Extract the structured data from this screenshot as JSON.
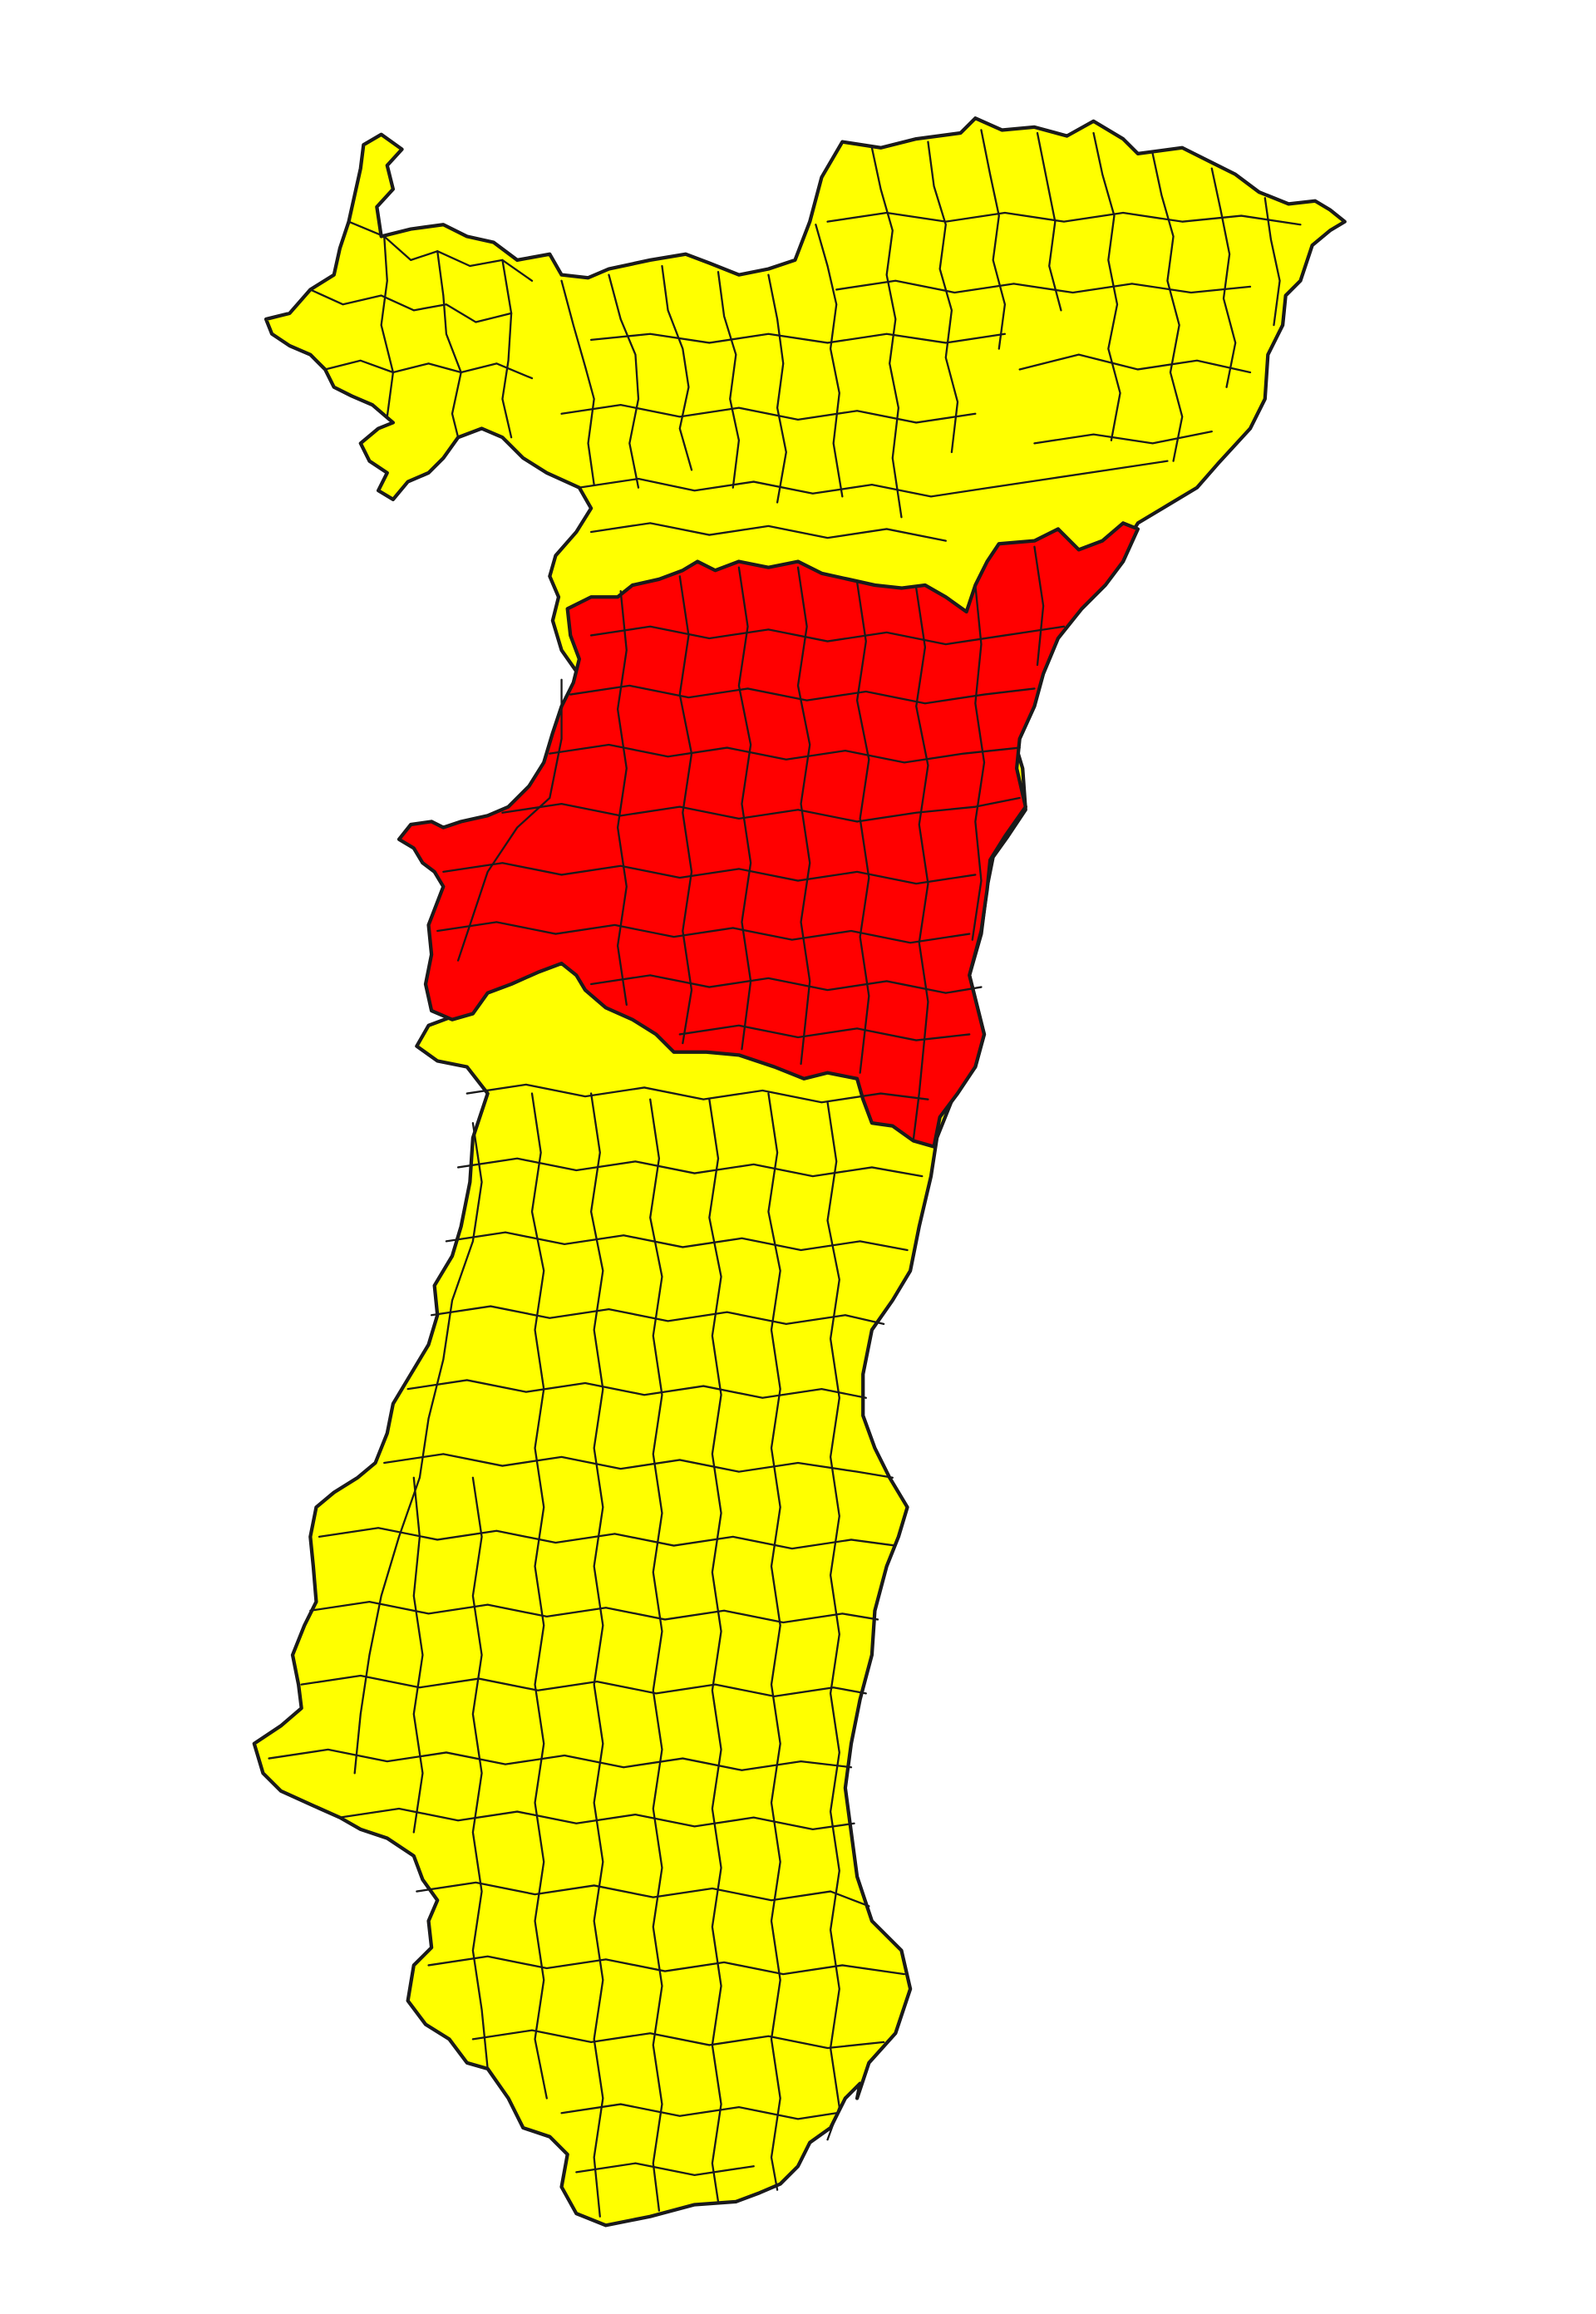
{
  "map": {
    "subject": "communes map",
    "colors": {
      "background": "#ffffff",
      "base_region": "#ffff00",
      "highlighted_region": "#ff0000",
      "border": "#1a1a1a"
    },
    "legend": null
  }
}
